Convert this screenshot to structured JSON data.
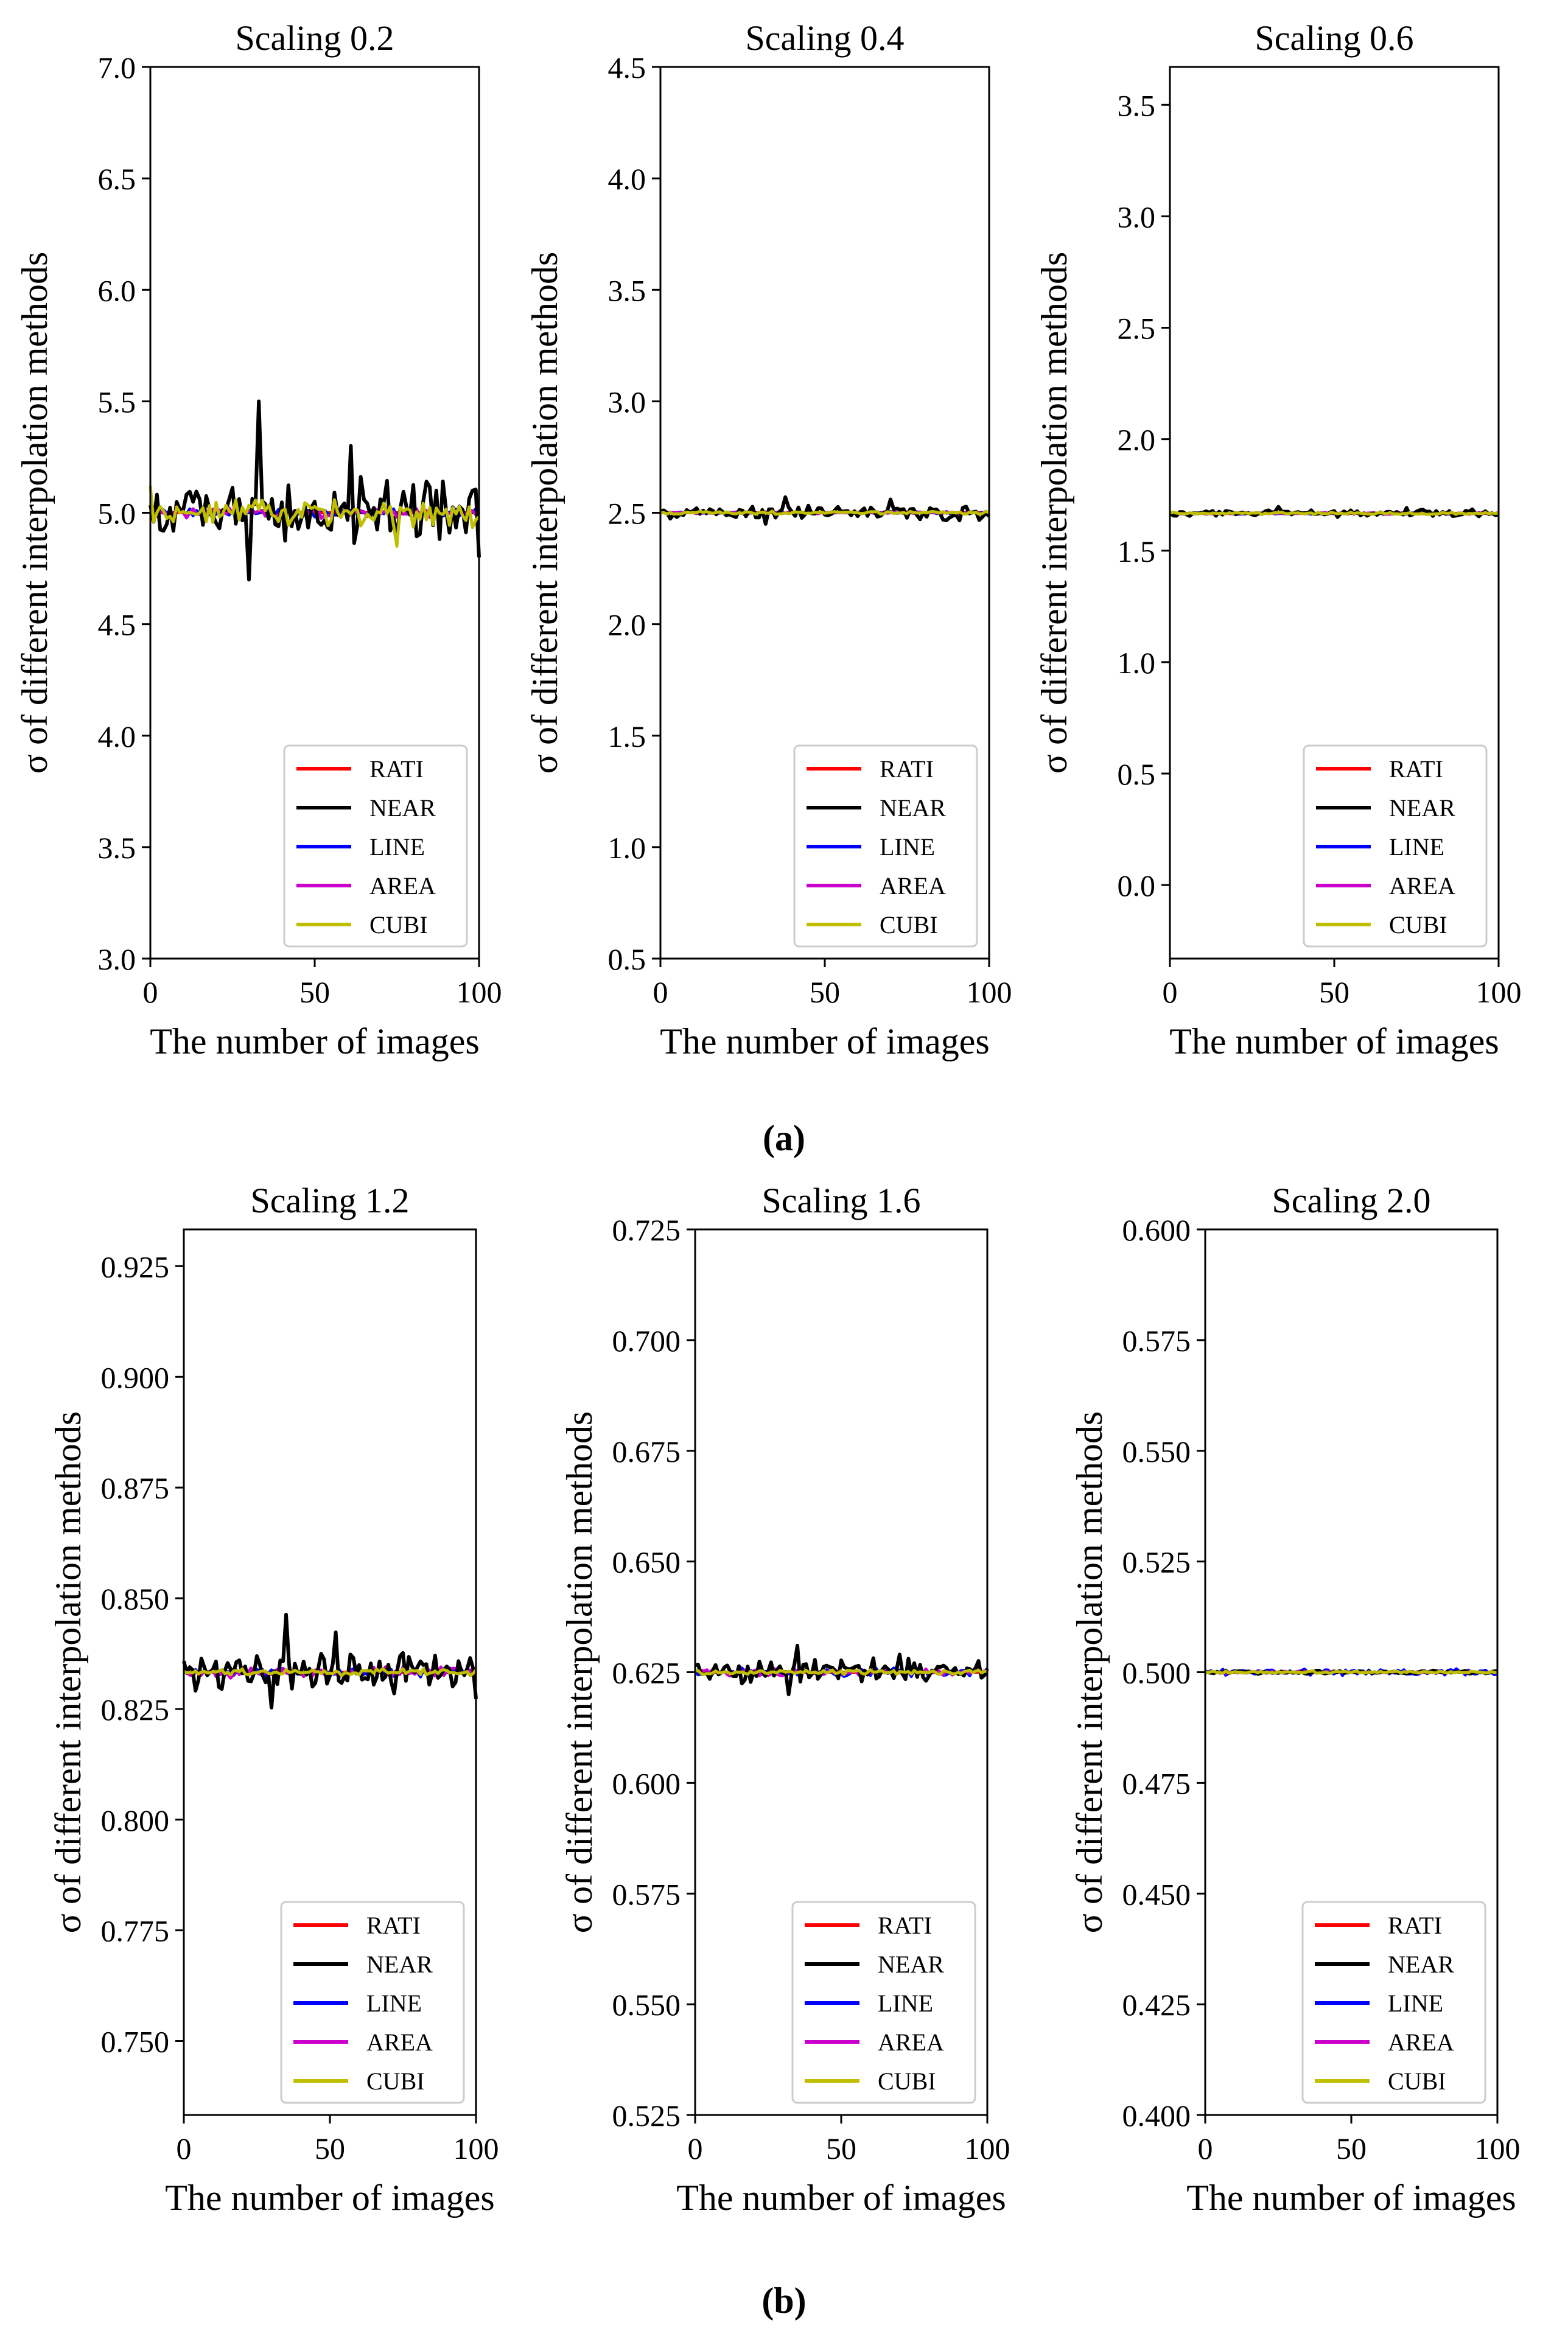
{
  "panel_labels": [
    "(a)",
    "(b)"
  ],
  "colors": {
    "RATI": "#ff0000",
    "NEAR": "#000000",
    "LINE": "#0000ff",
    "AREA": "#cc00cc",
    "CUBI": "#bfbf00"
  },
  "chart_data": [
    {
      "type": "line",
      "group": "a",
      "title": "Scaling 0.2",
      "xlabel": "The number of images",
      "ylabel": "σ of different interpolation methods",
      "xlim": [
        0,
        100
      ],
      "ylim": [
        3.0,
        7.0
      ],
      "xticks": [
        0,
        50,
        100
      ],
      "yticks": [
        3.0,
        3.5,
        4.0,
        4.5,
        5.0,
        5.5,
        6.0,
        6.5,
        7.0
      ],
      "ytick_labels": [
        "3.0",
        "3.5",
        "4.0",
        "4.5",
        "5.0",
        "5.5",
        "6.0",
        "6.5",
        "7.0"
      ],
      "base": 5.0,
      "noise": {
        "NEAR": 0.12,
        "LINE": 0.015,
        "AREA": 0.02,
        "CUBI": 0.05
      },
      "peaks": {
        "NEAR": [
          [
            33,
            0.5
          ],
          [
            30,
            -0.3
          ],
          [
            61,
            0.3
          ],
          [
            100,
            -0.2
          ]
        ],
        "CUBI": [
          [
            75,
            -0.15
          ],
          [
            0,
            0.12
          ]
        ]
      },
      "legend": [
        "RATI",
        "NEAR",
        "LINE",
        "AREA",
        "CUBI"
      ],
      "legend_loc": "lower-right"
    },
    {
      "type": "line",
      "group": "a",
      "title": "Scaling 0.4",
      "xlabel": "The number of images",
      "ylabel": "σ of different interpolation methods",
      "xlim": [
        0,
        100
      ],
      "ylim": [
        0.5,
        4.5
      ],
      "xticks": [
        0,
        50,
        100
      ],
      "yticks": [
        0.5,
        1.0,
        1.5,
        2.0,
        2.5,
        3.0,
        3.5,
        4.0,
        4.5
      ],
      "ytick_labels": [
        "0.5",
        "1.0",
        "1.5",
        "2.0",
        "2.5",
        "3.0",
        "3.5",
        "4.0",
        "4.5"
      ],
      "base": 2.5,
      "noise": {
        "NEAR": 0.03,
        "LINE": 0.004,
        "AREA": 0.004,
        "CUBI": 0.006
      },
      "peaks": {
        "NEAR": [
          [
            32,
            -0.05
          ],
          [
            38,
            0.07
          ],
          [
            70,
            0.06
          ]
        ]
      },
      "legend": [
        "RATI",
        "NEAR",
        "LINE",
        "AREA",
        "CUBI"
      ],
      "legend_loc": "lower-right"
    },
    {
      "type": "line",
      "group": "a",
      "title": "Scaling 0.6",
      "xlabel": "The number of images",
      "ylabel": "σ of different interpolation methods",
      "xlim": [
        0,
        100
      ],
      "ylim": [
        -0.33,
        3.67
      ],
      "xticks": [
        0,
        50,
        100
      ],
      "yticks": [
        0.0,
        0.5,
        1.0,
        1.5,
        2.0,
        2.5,
        3.0,
        3.5
      ],
      "ytick_labels": [
        "0.0",
        "0.5",
        "1.0",
        "1.5",
        "2.0",
        "2.5",
        "3.0",
        "3.5"
      ],
      "base": 1.667,
      "noise": {
        "NEAR": 0.014,
        "LINE": 0.003,
        "AREA": 0.003,
        "CUBI": 0.004
      },
      "peaks": {
        "NEAR": [
          [
            33,
            0.03
          ],
          [
            72,
            0.025
          ]
        ]
      },
      "legend": [
        "RATI",
        "NEAR",
        "LINE",
        "AREA",
        "CUBI"
      ],
      "legend_loc": "lower-right"
    },
    {
      "type": "line",
      "group": "b",
      "title": "Scaling 1.2",
      "xlabel": "The number of images",
      "ylabel": "σ of different interpolation methods",
      "xlim": [
        0,
        100
      ],
      "ylim": [
        0.7333,
        0.9333
      ],
      "xticks": [
        0,
        50,
        100
      ],
      "yticks": [
        0.75,
        0.775,
        0.8,
        0.825,
        0.85,
        0.875,
        0.9,
        0.925
      ],
      "ytick_labels": [
        "0.750",
        "0.775",
        "0.800",
        "0.825",
        "0.850",
        "0.875",
        "0.900",
        "0.925"
      ],
      "base": 0.8333,
      "noise": {
        "NEAR": 0.0035,
        "LINE": 0.0008,
        "AREA": 0.001,
        "CUBI": 0.0006
      },
      "peaks": {
        "NEAR": [
          [
            35,
            0.013
          ],
          [
            30,
            -0.008
          ],
          [
            52,
            0.009
          ],
          [
            100,
            -0.006
          ]
        ]
      },
      "legend": [
        "RATI",
        "NEAR",
        "LINE",
        "AREA",
        "CUBI"
      ],
      "legend_loc": "lower-right"
    },
    {
      "type": "line",
      "group": "b",
      "title": "Scaling 1.6",
      "xlabel": "The number of images",
      "ylabel": "σ of different interpolation methods",
      "xlim": [
        0,
        100
      ],
      "ylim": [
        0.525,
        0.725
      ],
      "xticks": [
        0,
        50,
        100
      ],
      "yticks": [
        0.525,
        0.55,
        0.575,
        0.6,
        0.625,
        0.65,
        0.675,
        0.7,
        0.725
      ],
      "ytick_labels": [
        "0.525",
        "0.550",
        "0.575",
        "0.600",
        "0.625",
        "0.650",
        "0.675",
        "0.700",
        "0.725"
      ],
      "base": 0.625,
      "noise": {
        "NEAR": 0.0022,
        "LINE": 0.0007,
        "AREA": 0.0006,
        "CUBI": 0.0004
      },
      "peaks": {
        "NEAR": [
          [
            35,
            0.006
          ],
          [
            32,
            -0.005
          ],
          [
            70,
            0.004
          ]
        ]
      },
      "legend": [
        "RATI",
        "NEAR",
        "LINE",
        "AREA",
        "CUBI"
      ],
      "legend_loc": "lower-right"
    },
    {
      "type": "line",
      "group": "b",
      "title": "Scaling 2.0",
      "xlabel": "The number of images",
      "ylabel": "σ of different interpolation methods",
      "xlim": [
        0,
        100
      ],
      "ylim": [
        0.4,
        0.6
      ],
      "xticks": [
        0,
        50,
        100
      ],
      "yticks": [
        0.4,
        0.425,
        0.45,
        0.475,
        0.5,
        0.525,
        0.55,
        0.575,
        0.6
      ],
      "ytick_labels": [
        "0.400",
        "0.425",
        "0.450",
        "0.475",
        "0.500",
        "0.525",
        "0.550",
        "0.575",
        "0.600"
      ],
      "base": 0.5,
      "noise": {
        "NEAR": 0.0003,
        "LINE": 0.0006,
        "AREA": 0.0002,
        "CUBI": 0.0002
      },
      "peaks": {},
      "legend": [
        "RATI",
        "NEAR",
        "LINE",
        "AREA",
        "CUBI"
      ],
      "legend_loc": "lower-right"
    }
  ]
}
